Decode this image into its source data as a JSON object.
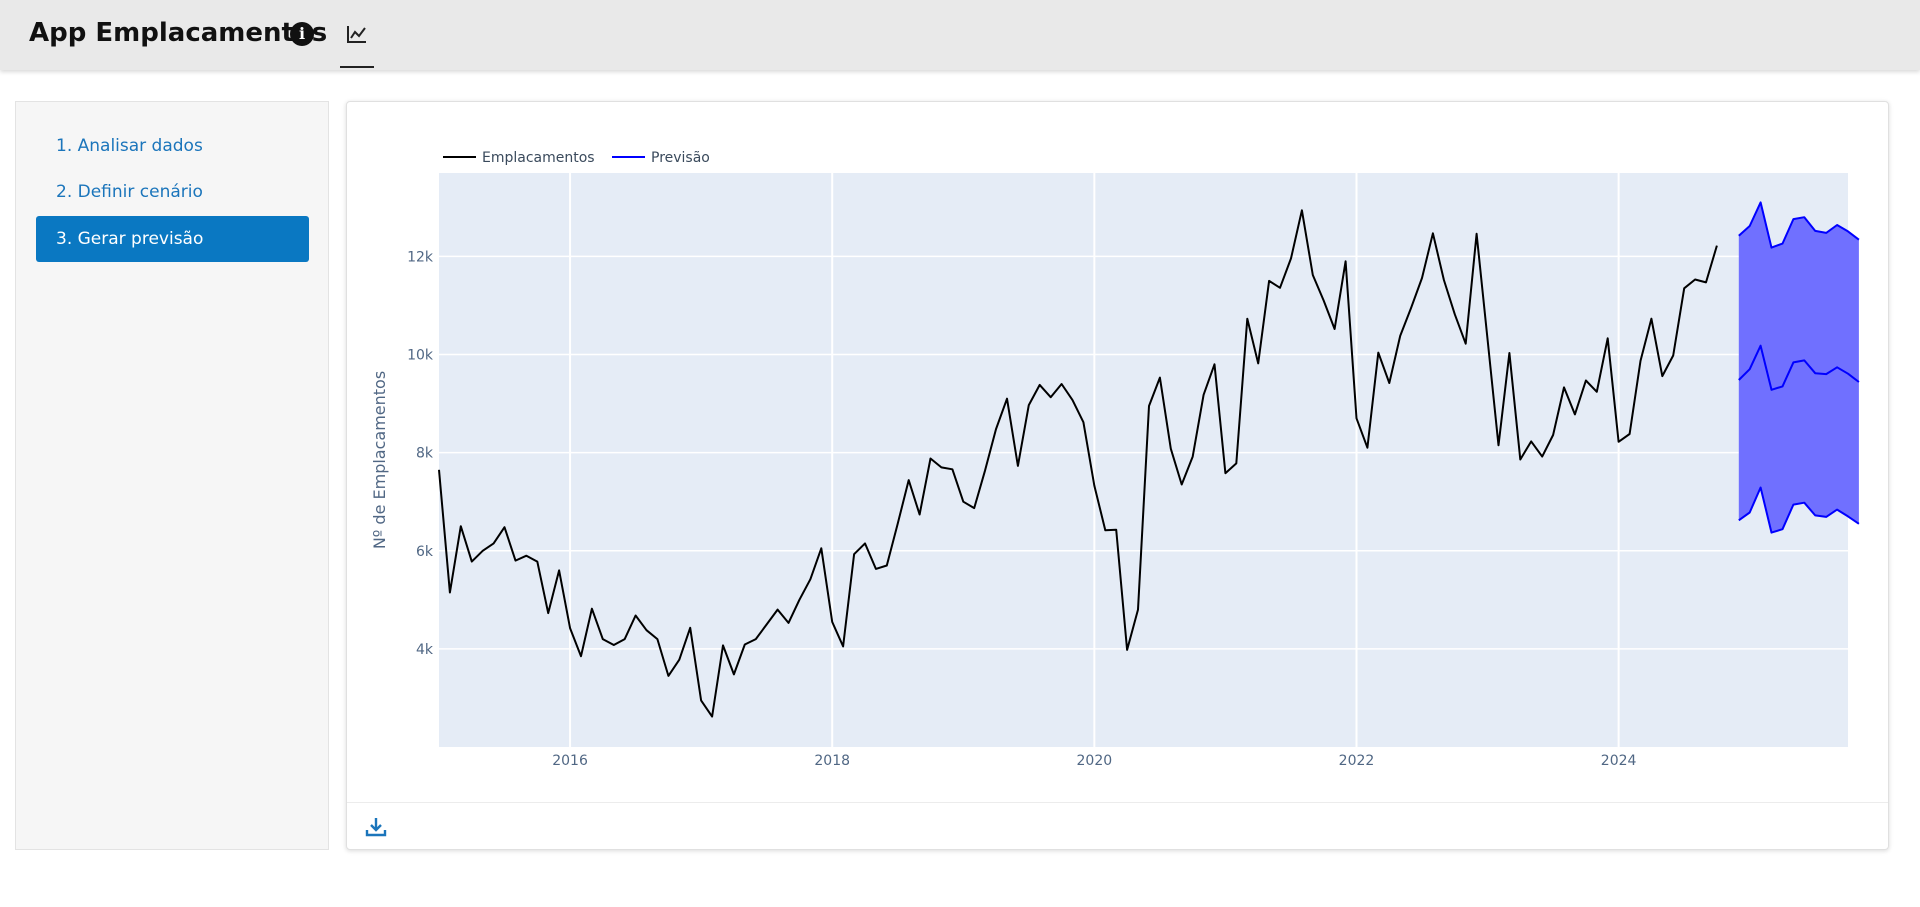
{
  "app": {
    "title": "App Emplacamentos"
  },
  "sidebar": {
    "items": [
      {
        "label": "1. Analisar dados",
        "active": false
      },
      {
        "label": "2. Definir cenário",
        "active": false
      },
      {
        "label": "3. Gerar previsão",
        "active": true
      }
    ]
  },
  "icons": {
    "info": "info-icon",
    "nav_tab": "line-chart-icon",
    "download": "download-icon"
  },
  "colors": {
    "accent": "#0a78c2",
    "history_line": "#000000",
    "forecast_line": "#0000ff",
    "forecast_band": "#7070ff",
    "plot_bg": "#e5ecf6"
  },
  "chart_data": {
    "type": "line",
    "title": "",
    "xlabel": "",
    "ylabel": "Nº de Emplacamentos",
    "xlim": [
      2015.0,
      2025.75
    ],
    "ylim": [
      2000,
      13700
    ],
    "x_ticks": [
      2016,
      2018,
      2020,
      2022,
      2024
    ],
    "x_tick_labels": [
      "2016",
      "2018",
      "2020",
      "2022",
      "2024"
    ],
    "y_ticks": [
      4000,
      6000,
      8000,
      10000,
      12000
    ],
    "y_tick_labels": [
      "4k",
      "6k",
      "8k",
      "10k",
      "12k"
    ],
    "grid": true,
    "legend": "top-left",
    "legend_entries": [
      "Emplacamentos",
      "Previsão"
    ],
    "history": {
      "name": "Emplacamentos",
      "start": "2015-01",
      "values": [
        7650,
        5150,
        6500,
        5780,
        6000,
        6150,
        6480,
        5800,
        5900,
        5780,
        4730,
        5600,
        4420,
        3850,
        4820,
        4200,
        4080,
        4200,
        4680,
        4380,
        4200,
        3450,
        3780,
        4430,
        2950,
        2620,
        4070,
        3480,
        4090,
        4200,
        4500,
        4800,
        4530,
        5000,
        5420,
        6050,
        4550,
        4050,
        5930,
        6150,
        5630,
        5700,
        6550,
        7440,
        6740,
        7880,
        7700,
        7660,
        7000,
        6870,
        7640,
        8480,
        9100,
        7730,
        8970,
        9380,
        9130,
        9400,
        9070,
        8620,
        7330,
        6420,
        6430,
        3980,
        4800,
        8950,
        9530,
        8080,
        7350,
        7920,
        9180,
        9800,
        7580,
        7780,
        10730,
        9820,
        11500,
        11360,
        11960,
        12940,
        11620,
        11100,
        10520,
        11900,
        8700,
        8100,
        10040,
        9420,
        10380,
        10950,
        11560,
        12470,
        11520,
        10820,
        10220,
        12460,
        10300,
        8150,
        10030,
        7860,
        8230,
        7920,
        8360,
        9330,
        8780,
        9470,
        9240,
        10330,
        8220,
        8380,
        9870,
        10730,
        9560,
        9980,
        11350,
        11530,
        11470,
        12220
      ]
    },
    "forecast": {
      "name": "Previsão",
      "start": "2024-12",
      "mean": [
        9480,
        9700,
        10180,
        9280,
        9350,
        9840,
        9880,
        9620,
        9600,
        9740,
        9610,
        9440
      ],
      "upper": [
        12420,
        12620,
        13100,
        12180,
        12260,
        12760,
        12800,
        12520,
        12480,
        12640,
        12510,
        12340
      ],
      "lower": [
        6620,
        6780,
        7290,
        6370,
        6440,
        6940,
        6980,
        6720,
        6690,
        6840,
        6700,
        6550
      ]
    }
  }
}
